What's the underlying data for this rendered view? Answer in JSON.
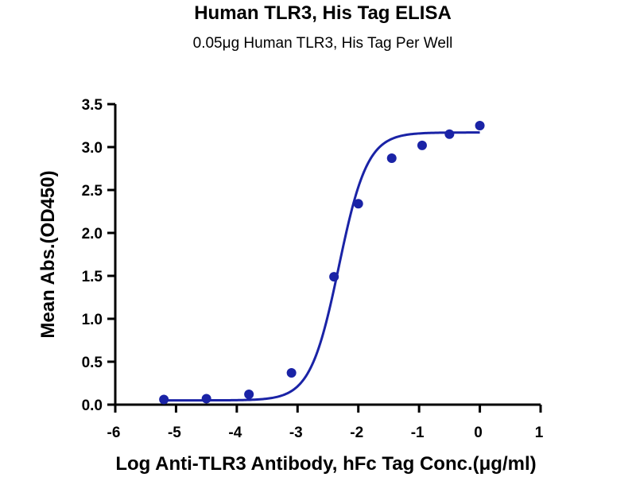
{
  "chart_data": {
    "type": "scatter",
    "title": "Human TLR3, His Tag ELISA",
    "subtitle": "0.05μg Human TLR3, His Tag Per Well",
    "xlabel": "Log Anti-TLR3 Antibody, hFc Tag Conc.(μg/ml)",
    "ylabel": "Mean Abs.(OD450)",
    "xlim": [
      -6,
      1
    ],
    "ylim": [
      0,
      3.5
    ],
    "x_ticks": [
      -6,
      -5,
      -4,
      -3,
      -2,
      -1,
      0,
      1
    ],
    "x_tick_labels": [
      "-6",
      "-5",
      "-4",
      "-3",
      "-2",
      "-1",
      "0",
      "1"
    ],
    "y_ticks": [
      0,
      0.5,
      1.0,
      1.5,
      2.0,
      2.5,
      3.0,
      3.5
    ],
    "y_tick_labels": [
      "0.0",
      "0.5",
      "1.0",
      "1.5",
      "2.0",
      "2.5",
      "3.0",
      "3.5"
    ],
    "grid": false,
    "colors": {
      "series": "#1a23a6",
      "axis": "#000000"
    },
    "series": [
      {
        "points": [
          {
            "x": -5.2,
            "y": 0.06
          },
          {
            "x": -4.5,
            "y": 0.07
          },
          {
            "x": -3.8,
            "y": 0.12
          },
          {
            "x": -3.1,
            "y": 0.37
          },
          {
            "x": -2.4,
            "y": 1.49
          },
          {
            "x": -2.0,
            "y": 2.34
          },
          {
            "x": -1.45,
            "y": 2.87
          },
          {
            "x": -0.95,
            "y": 3.02
          },
          {
            "x": -0.5,
            "y": 3.15
          },
          {
            "x": 0.0,
            "y": 3.25
          }
        ],
        "fit": {
          "model": "4PL",
          "bottom": 0.05,
          "top": 3.17,
          "logEC50": -2.32,
          "hill_slope": 1.85,
          "x_range": [
            -5.2,
            0.0
          ]
        }
      }
    ]
  }
}
